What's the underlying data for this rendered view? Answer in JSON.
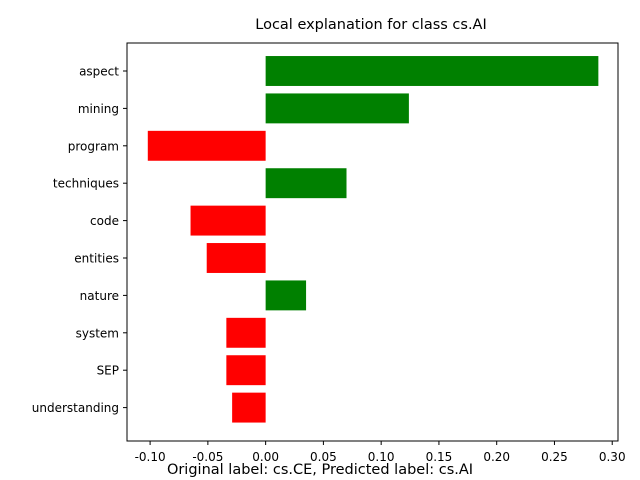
{
  "chart_data": {
    "type": "bar",
    "orientation": "horizontal",
    "title": "Local explanation for class cs.AI",
    "caption": "Original label: cs.CE, Predicted label: cs.AI",
    "categories": [
      "aspect",
      "mining",
      "program",
      "techniques",
      "code",
      "entities",
      "nature",
      "system",
      "SEP",
      "understanding"
    ],
    "values": [
      0.288,
      0.124,
      -0.102,
      0.07,
      -0.065,
      -0.051,
      0.035,
      -0.034,
      -0.034,
      -0.029
    ],
    "xlim": [
      -0.12,
      0.305
    ],
    "xticks": [
      "-0.10",
      "-0.05",
      "0.00",
      "0.05",
      "0.10",
      "0.15",
      "0.20",
      "0.25",
      "0.30"
    ],
    "xtick_values": [
      -0.1,
      -0.05,
      0.0,
      0.05,
      0.1,
      0.15,
      0.2,
      0.25,
      0.3
    ],
    "colors": {
      "positive": "#008000",
      "negative": "#ff0000"
    },
    "grid": false,
    "legend": "none"
  }
}
